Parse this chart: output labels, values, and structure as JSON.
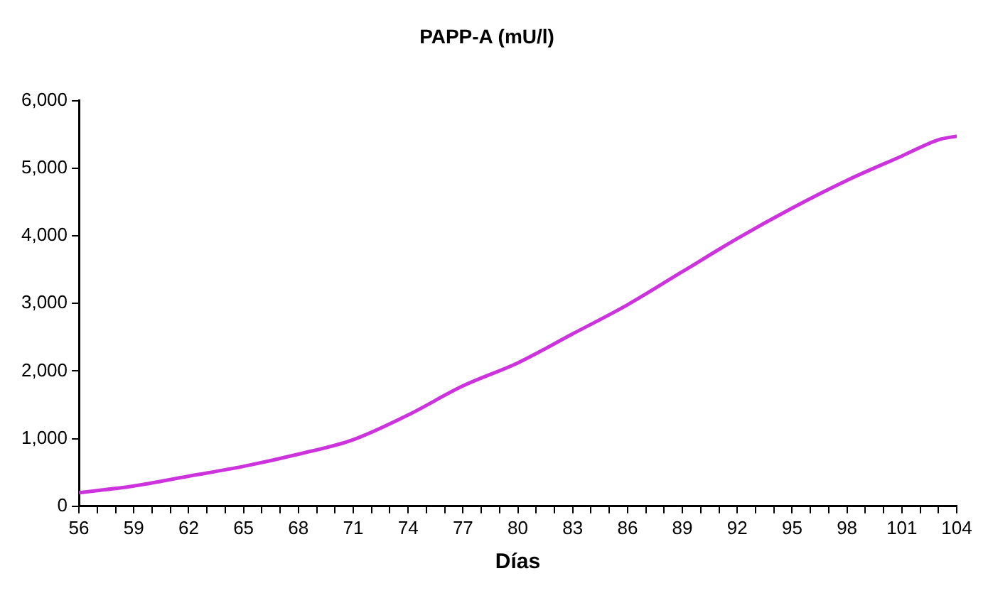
{
  "chart_data": {
    "type": "line",
    "title": "PAPP-A (mU/l)",
    "xlabel": "Días",
    "x": [
      56,
      59,
      62,
      65,
      68,
      71,
      74,
      77,
      80,
      83,
      86,
      89,
      92,
      95,
      98,
      101,
      103,
      104
    ],
    "series": [
      {
        "color": "#cc33dd",
        "values": [
          200,
          300,
          445,
          590,
          770,
          985,
          1350,
          1780,
          2120,
          2550,
          2980,
          3470,
          3960,
          4410,
          4820,
          5180,
          5420,
          5475
        ]
      }
    ],
    "xlim": [
      56,
      104
    ],
    "xticks": [
      56,
      {
        "value": 57,
        "label": null
      },
      {
        "value": 58,
        "label": null
      },
      59,
      {
        "value": 60,
        "label": null
      },
      {
        "value": 61,
        "label": null
      },
      62,
      {
        "value": 63,
        "label": null
      },
      {
        "value": 64,
        "label": null
      },
      65,
      {
        "value": 66,
        "label": null
      },
      {
        "value": 67,
        "label": null
      },
      68,
      {
        "value": 69,
        "label": null
      },
      {
        "value": 70,
        "label": null
      },
      71,
      {
        "value": 72,
        "label": null
      },
      {
        "value": 73,
        "label": null
      },
      74,
      {
        "value": 75,
        "label": null
      },
      {
        "value": 76,
        "label": null
      },
      77,
      {
        "value": 78,
        "label": null
      },
      {
        "value": 79,
        "label": null
      },
      80,
      {
        "value": 81,
        "label": null
      },
      {
        "value": 82,
        "label": null
      },
      83,
      {
        "value": 84,
        "label": null
      },
      {
        "value": 85,
        "label": null
      },
      86,
      {
        "value": 87,
        "label": null
      },
      {
        "value": 88,
        "label": null
      },
      89,
      {
        "value": 90,
        "label": null
      },
      {
        "value": 91,
        "label": null
      },
      92,
      {
        "value": 93,
        "label": null
      },
      {
        "value": 94,
        "label": null
      },
      95,
      {
        "value": 96,
        "label": null
      },
      {
        "value": 97,
        "label": null
      },
      98,
      {
        "value": 99,
        "label": null
      },
      {
        "value": 100,
        "label": null
      },
      101,
      {
        "value": 102,
        "label": null
      },
      {
        "value": 103,
        "label": null
      },
      104
    ],
    "ylim": [
      0,
      6000
    ],
    "yticks": [
      {
        "value": 0,
        "label": "0"
      },
      {
        "value": 1000,
        "label": "1,000"
      },
      {
        "value": 2000,
        "label": "2,000"
      },
      {
        "value": 3000,
        "label": "3,000"
      },
      {
        "value": 4000,
        "label": "4,000"
      },
      {
        "value": 5000,
        "label": "5,000"
      },
      {
        "value": 6000,
        "label": "6,000"
      }
    ],
    "grid": false,
    "legend": false,
    "marker": "none",
    "line_style": "solid"
  }
}
